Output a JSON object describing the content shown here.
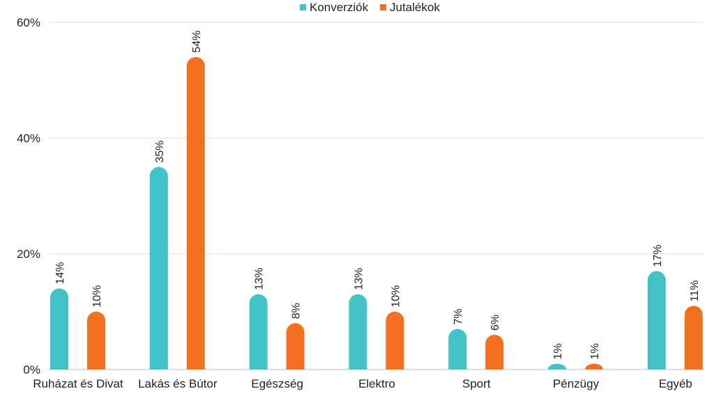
{
  "chart_data": {
    "type": "bar",
    "title": "",
    "xlabel": "",
    "ylabel": "",
    "ylim": [
      0,
      60
    ],
    "yticks": [
      "0%",
      "20%",
      "40%",
      "60%"
    ],
    "ytick_values": [
      0,
      20,
      40,
      60
    ],
    "grid": true,
    "legend_position": "top",
    "categories": [
      "Ruházat és Divat",
      "Lakás és Bútor",
      "Egészség",
      "Elektro",
      "Sport",
      "Pénzügy",
      "Egyéb"
    ],
    "series": [
      {
        "name": "Konverziók",
        "color": "#43C3C8",
        "values": [
          14,
          35,
          13,
          13,
          7,
          1,
          17
        ],
        "labels": [
          "14%",
          "35%",
          "13%",
          "13%",
          "7%",
          "1%",
          "17%"
        ]
      },
      {
        "name": "Jutalékok",
        "color": "#F37021",
        "values": [
          10,
          54,
          8,
          10,
          6,
          1,
          11
        ],
        "labels": [
          "10%",
          "54%",
          "8%",
          "10%",
          "6%",
          "1%",
          "11%"
        ]
      }
    ]
  }
}
